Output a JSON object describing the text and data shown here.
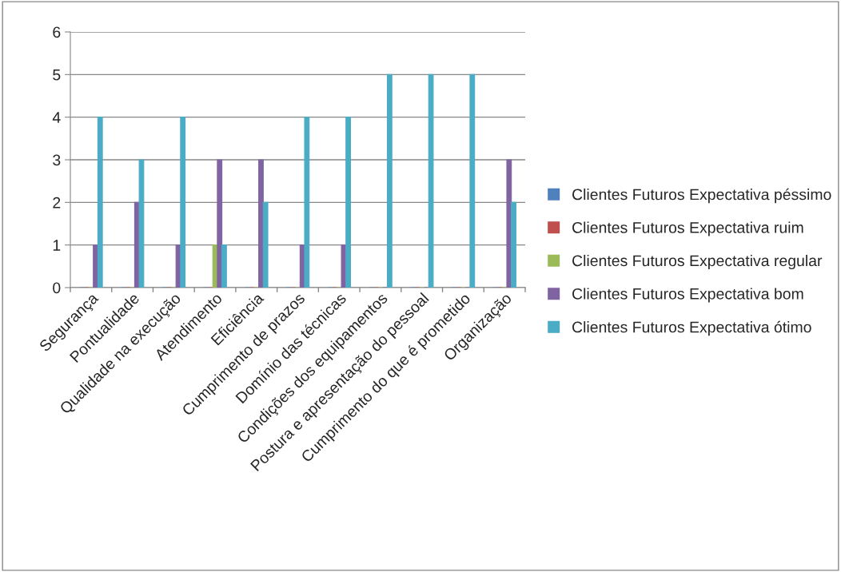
{
  "chart_data": {
    "type": "bar",
    "categories": [
      "Segurança",
      "Pontualidade",
      "Qualidade na execução",
      "Atendimento",
      "Eficiência",
      "Cumprimento de prazos",
      "Domínio das técnicas",
      "Condições dos equipamentos",
      "Postura e apresentação do pessoal",
      "Cumprimento do que é prometido",
      "Organização"
    ],
    "series": [
      {
        "name": "Clientes Futuros Expectativa péssimo",
        "color": "#4f81bd",
        "values": [
          0,
          0,
          0,
          0,
          0,
          0,
          0,
          0,
          0,
          0,
          0
        ]
      },
      {
        "name": "Clientes Futuros Expectativa ruim",
        "color": "#c0504d",
        "values": [
          0,
          0,
          0,
          0,
          0,
          0,
          0,
          0,
          0,
          0,
          0
        ]
      },
      {
        "name": "Clientes Futuros Expectativa regular",
        "color": "#9bbb59",
        "values": [
          0,
          0,
          0,
          1,
          0,
          0,
          0,
          0,
          0,
          0,
          0
        ]
      },
      {
        "name": "Clientes Futuros Expectativa bom",
        "color": "#8064a2",
        "values": [
          1,
          2,
          1,
          3,
          3,
          1,
          1,
          0,
          0,
          0,
          3
        ]
      },
      {
        "name": "Clientes Futuros Expectativa ótimo",
        "color": "#4bacc6",
        "values": [
          4,
          3,
          4,
          1,
          2,
          4,
          4,
          5,
          5,
          5,
          2
        ]
      }
    ],
    "ylim": [
      0,
      6
    ],
    "yticks": [
      0,
      1,
      2,
      3,
      4,
      5,
      6
    ],
    "grid": "y",
    "legend": "right"
  }
}
